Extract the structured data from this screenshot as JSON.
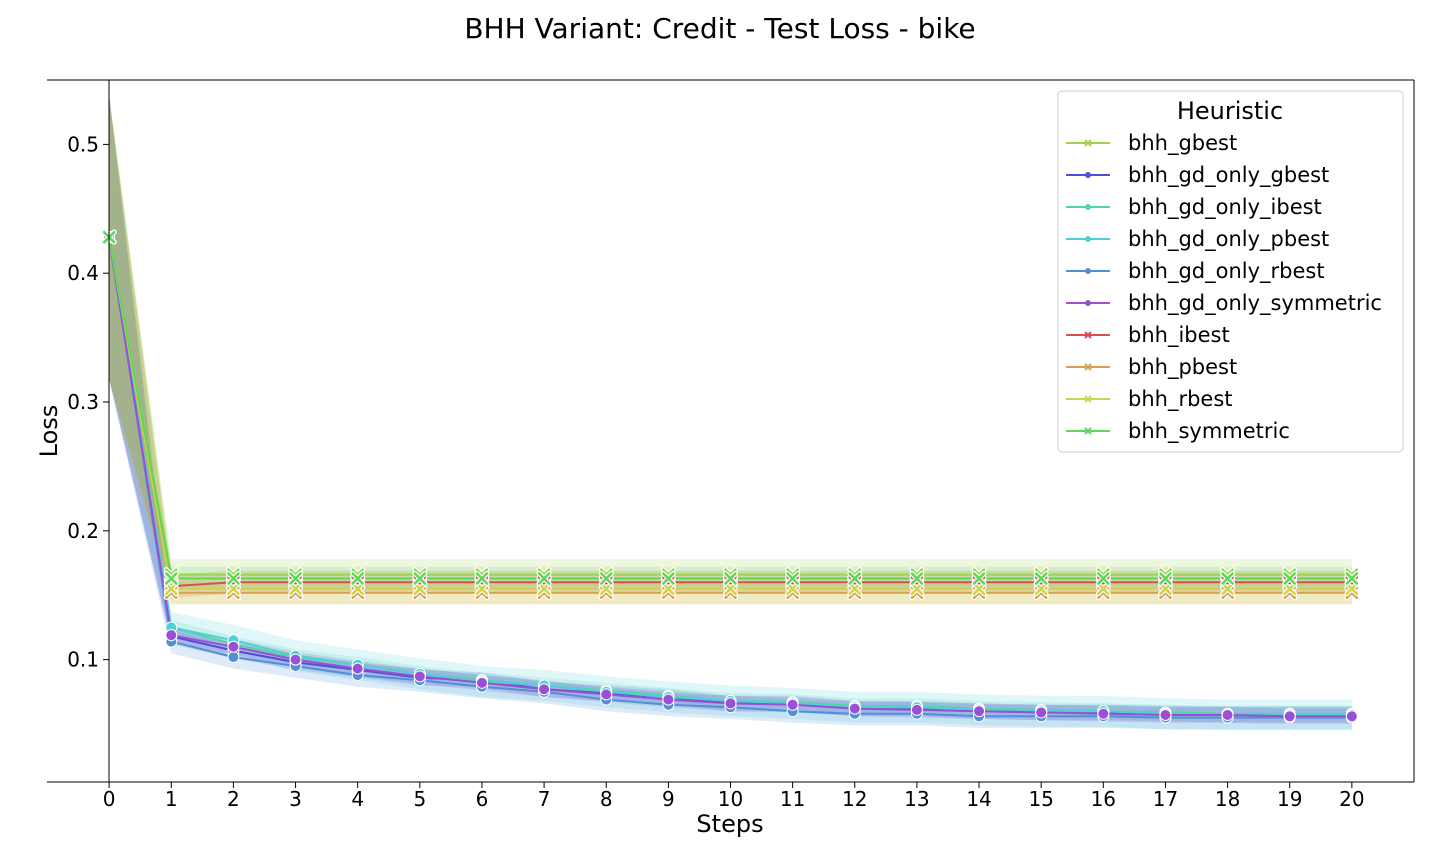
{
  "chart_data": {
    "type": "line",
    "title": "BHH Variant: Credit - Test Loss - bike",
    "xlabel": "Steps",
    "ylabel": "Loss",
    "x": [
      0,
      1,
      2,
      3,
      4,
      5,
      6,
      7,
      8,
      9,
      10,
      11,
      12,
      13,
      14,
      15,
      16,
      17,
      18,
      19,
      20
    ],
    "xlim": [
      -1,
      21
    ],
    "ylim": [
      0.005,
      0.55
    ],
    "yticks": [
      0.1,
      0.2,
      0.3,
      0.4,
      0.5
    ],
    "grid": false,
    "legend": {
      "title": "Heuristic",
      "placement": "top-right"
    },
    "series": [
      {
        "name": "bhh_gbest",
        "color": "#9bd550",
        "marker": "x",
        "band": 0.012,
        "values": [
          0.428,
          0.166,
          0.166,
          0.166,
          0.166,
          0.166,
          0.166,
          0.166,
          0.166,
          0.166,
          0.166,
          0.166,
          0.166,
          0.166,
          0.166,
          0.166,
          0.166,
          0.166,
          0.166,
          0.166,
          0.166
        ]
      },
      {
        "name": "bhh_gd_only_gbest",
        "color": "#5050d6",
        "marker": "o",
        "band": 0.006,
        "values": [
          0.428,
          0.118,
          0.107,
          0.098,
          0.092,
          0.086,
          0.084,
          0.077,
          0.074,
          0.071,
          0.066,
          0.066,
          0.062,
          0.062,
          0.06,
          0.059,
          0.059,
          0.058,
          0.057,
          0.057,
          0.057
        ]
      },
      {
        "name": "bhh_gd_only_ibest",
        "color": "#50d6a0",
        "marker": "o",
        "band": 0.006,
        "values": [
          0.428,
          0.125,
          0.112,
          0.102,
          0.096,
          0.089,
          0.084,
          0.08,
          0.076,
          0.072,
          0.068,
          0.067,
          0.064,
          0.064,
          0.062,
          0.061,
          0.06,
          0.059,
          0.058,
          0.058,
          0.058
        ]
      },
      {
        "name": "bhh_gd_only_pbest",
        "color": "#50d0d6",
        "marker": "o",
        "band": 0.012,
        "values": [
          0.428,
          0.125,
          0.115,
          0.103,
          0.096,
          0.089,
          0.083,
          0.08,
          0.075,
          0.071,
          0.068,
          0.066,
          0.063,
          0.063,
          0.061,
          0.06,
          0.06,
          0.058,
          0.057,
          0.057,
          0.057
        ]
      },
      {
        "name": "bhh_gd_only_rbest",
        "color": "#5090d6",
        "marker": "o",
        "band": 0.009,
        "values": [
          0.428,
          0.114,
          0.102,
          0.095,
          0.088,
          0.084,
          0.079,
          0.075,
          0.069,
          0.065,
          0.063,
          0.06,
          0.058,
          0.058,
          0.056,
          0.056,
          0.056,
          0.055,
          0.055,
          0.055,
          0.055
        ]
      },
      {
        "name": "bhh_gd_only_symmetric",
        "color": "#9a50d6",
        "marker": "o",
        "band": 0.006,
        "values": [
          0.428,
          0.119,
          0.11,
          0.1,
          0.093,
          0.087,
          0.082,
          0.077,
          0.073,
          0.069,
          0.066,
          0.065,
          0.062,
          0.061,
          0.06,
          0.059,
          0.058,
          0.057,
          0.057,
          0.056,
          0.056
        ]
      },
      {
        "name": "bhh_ibest",
        "color": "#d65050",
        "marker": "x",
        "band": 0.009,
        "values": [
          0.428,
          0.157,
          0.16,
          0.16,
          0.16,
          0.16,
          0.16,
          0.16,
          0.16,
          0.16,
          0.16,
          0.16,
          0.16,
          0.16,
          0.16,
          0.16,
          0.16,
          0.16,
          0.16,
          0.16,
          0.16
        ]
      },
      {
        "name": "bhh_pbest",
        "color": "#d6a050",
        "marker": "x",
        "band": 0.009,
        "values": [
          0.428,
          0.152,
          0.152,
          0.152,
          0.152,
          0.152,
          0.152,
          0.152,
          0.152,
          0.152,
          0.152,
          0.152,
          0.152,
          0.152,
          0.152,
          0.152,
          0.152,
          0.152,
          0.152,
          0.152,
          0.152
        ]
      },
      {
        "name": "bhh_rbest",
        "color": "#cbd650",
        "marker": "x",
        "band": 0.012,
        "values": [
          0.428,
          0.155,
          0.155,
          0.155,
          0.155,
          0.155,
          0.155,
          0.155,
          0.155,
          0.155,
          0.155,
          0.155,
          0.155,
          0.155,
          0.155,
          0.155,
          0.155,
          0.155,
          0.155,
          0.155,
          0.155
        ]
      },
      {
        "name": "bhh_symmetric",
        "color": "#5cd65c",
        "marker": "x",
        "band": 0.009,
        "values": [
          0.428,
          0.163,
          0.163,
          0.163,
          0.163,
          0.163,
          0.163,
          0.163,
          0.163,
          0.163,
          0.163,
          0.163,
          0.163,
          0.163,
          0.163,
          0.163,
          0.163,
          0.163,
          0.163,
          0.163,
          0.163
        ]
      }
    ]
  }
}
